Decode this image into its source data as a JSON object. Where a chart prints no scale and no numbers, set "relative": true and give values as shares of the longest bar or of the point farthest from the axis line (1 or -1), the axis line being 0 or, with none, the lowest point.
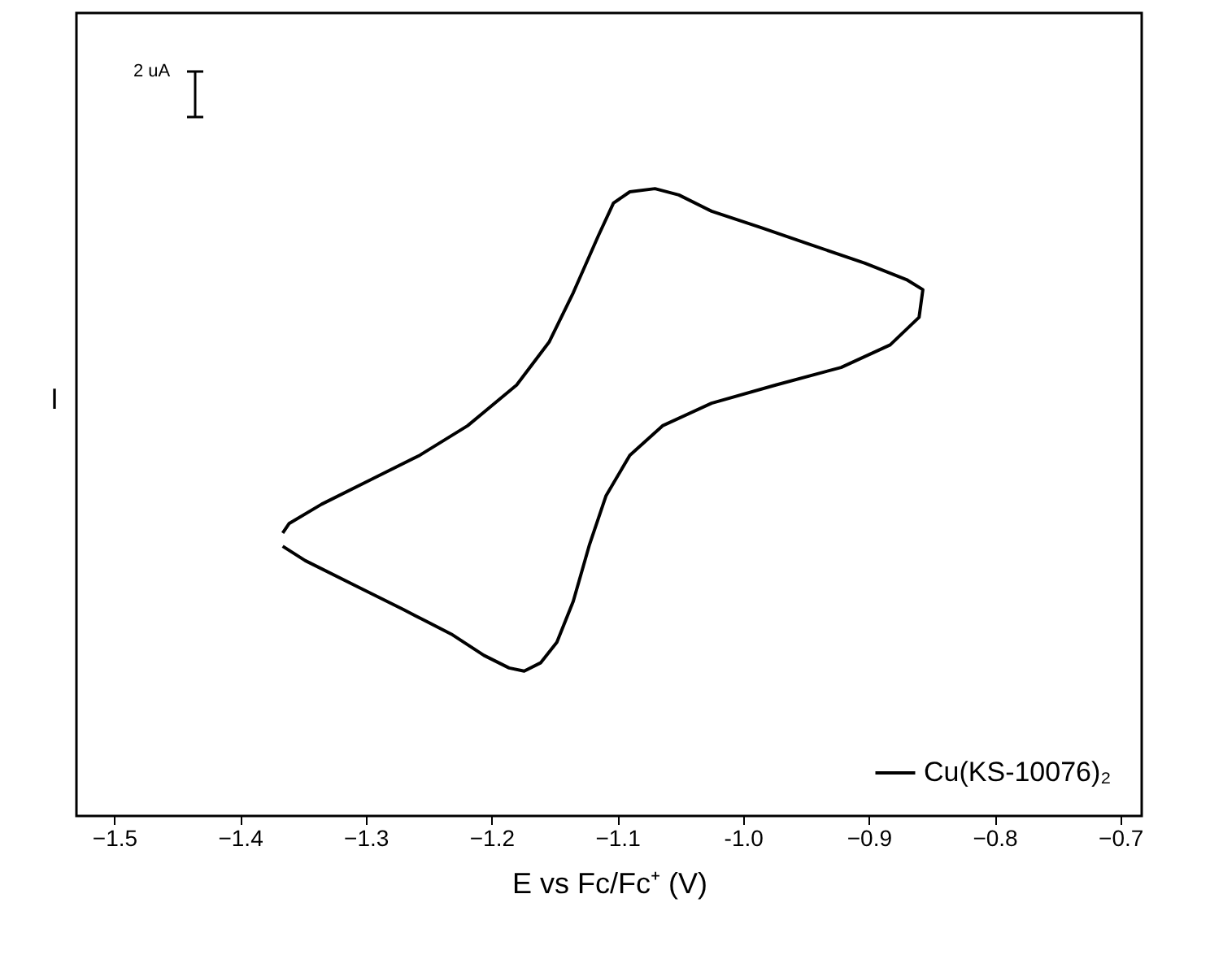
{
  "chart_data": {
    "type": "line",
    "relative": true,
    "xlabel": "E vs Fc/Fc⁺ (V)",
    "ylabel": "I",
    "xlim": [
      -1.53,
      -0.683
    ],
    "xticks": [
      -1.5,
      -1.4,
      -1.3,
      -1.2,
      -1.1,
      {
        "value": -1,
        "label": "-1.0"
      },
      -0.9,
      -0.8,
      -0.7
    ],
    "legend": "bottom right",
    "line_style": "solid",
    "annotations": [
      "2 uA"
    ],
    "series": [
      {
        "name": "Cu(KS-10076)₂",
        "color": "#000000",
        "x": [
          -1.366,
          -1.348,
          -1.309,
          -1.27,
          -1.232,
          -1.206,
          -1.186,
          -1.174,
          -1.161,
          -1.148,
          -1.135,
          -1.122,
          -1.109,
          -1.09,
          -1.064,
          -1.025,
          -0.974,
          -0.922,
          -0.883,
          -0.86,
          -0.857,
          -0.87,
          -0.903,
          -0.948,
          -0.986,
          -1.025,
          -1.051,
          -1.07,
          -1.09,
          -1.103,
          -1.115,
          -1.135,
          -1.154,
          -1.18,
          -1.219,
          -1.257,
          -1.296,
          -1.335,
          -1.361,
          -1.366
        ],
        "values": [
          0.43,
          0.407,
          0.368,
          0.329,
          0.29,
          0.256,
          0.236,
          0.231,
          0.244,
          0.277,
          0.342,
          0.433,
          0.51,
          0.575,
          0.622,
          0.658,
          0.687,
          0.715,
          0.751,
          0.795,
          0.839,
          0.855,
          0.881,
          0.912,
          0.938,
          0.964,
          0.99,
          1.0,
          0.995,
          0.977,
          0.925,
          0.834,
          0.756,
          0.687,
          0.622,
          0.575,
          0.536,
          0.497,
          0.466,
          0.451
        ]
      }
    ]
  }
}
